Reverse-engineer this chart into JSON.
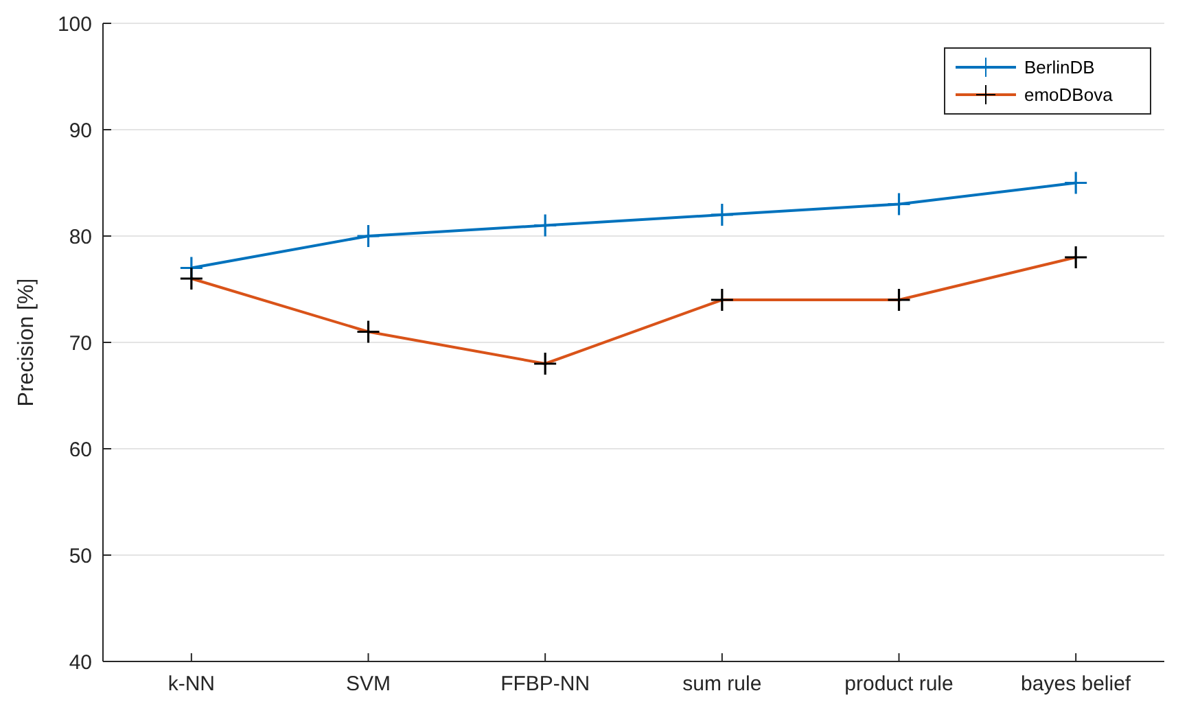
{
  "chart_data": {
    "type": "line",
    "ylabel": "Precision [%]",
    "categories": [
      "k-NN",
      "SVM",
      "FFBP-NN",
      "sum rule",
      "product rule",
      "bayes belief"
    ],
    "series": [
      {
        "name": "BerlinDB",
        "color": "#0072bd",
        "values": [
          77,
          80,
          81,
          82,
          83,
          85
        ]
      },
      {
        "name": "emoDBova",
        "color": "#d95319",
        "values": [
          76,
          71,
          68,
          74,
          74,
          78
        ]
      }
    ],
    "ylim": [
      40,
      100
    ],
    "yticks": [
      40,
      50,
      60,
      70,
      80,
      90,
      100
    ],
    "grid": "y",
    "legend": "top right",
    "marker": "cross",
    "line_style": "solid"
  }
}
